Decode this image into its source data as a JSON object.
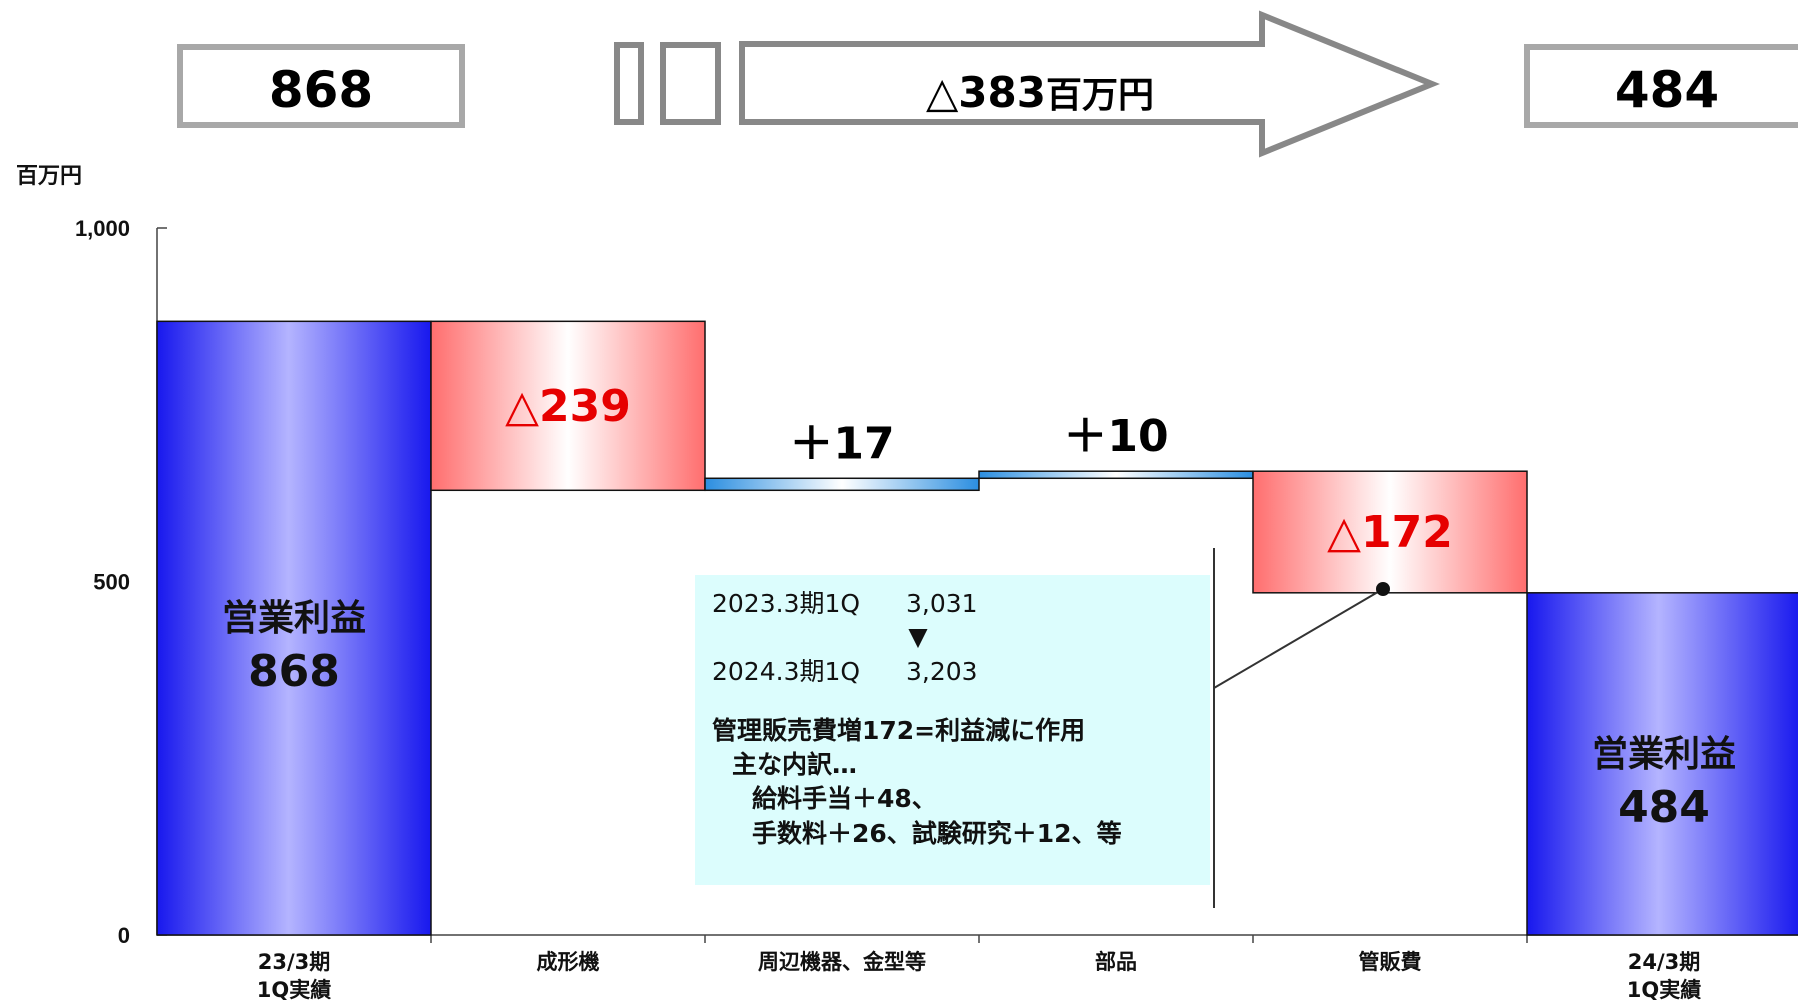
{
  "chart_data": {
    "type": "waterfall",
    "unit": "百万円",
    "ylim": [
      0,
      1000
    ],
    "yticks": [
      "0",
      "500",
      "1,000"
    ],
    "ytick_values": [
      0,
      500,
      1000
    ],
    "categories": [
      "23/3期\n1Q実績",
      "成形機",
      "周辺機器、金型等",
      "部品",
      "管販費",
      "24/3期\n1Q実績"
    ],
    "steps": [
      {
        "kind": "total",
        "value": 868,
        "title": "営業利益",
        "label": "868"
      },
      {
        "kind": "change",
        "value": -239,
        "label": "△239"
      },
      {
        "kind": "change",
        "value": 17,
        "label": "＋17"
      },
      {
        "kind": "change",
        "value": 10,
        "label": "＋10"
      },
      {
        "kind": "change",
        "value": -172,
        "label": "△172"
      },
      {
        "kind": "total",
        "value": 484,
        "title": "営業利益",
        "label": "484"
      }
    ],
    "header": {
      "start_value": "868",
      "change_label": "△383",
      "change_unit": "百万円",
      "end_value": "484"
    },
    "annotation": {
      "line1_period": "2023.3期1Q",
      "line1_value": "3,031",
      "marker": "▼",
      "line2_period": "2024.3期1Q",
      "line2_value": "3,203",
      "line3": "管理販売費増172=利益減に作用",
      "line4": "主な内訳…",
      "line5": "給料手当＋48、",
      "line6": "手数料＋26、試験研究＋12、等"
    },
    "colors": {
      "total_bar": "#1a1aff",
      "negative_bar": "#ff6b6b",
      "positive_bar": "#2e8fe0",
      "negative_text": "#e60000",
      "note_bg": "#dcfdfd"
    }
  }
}
